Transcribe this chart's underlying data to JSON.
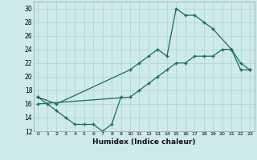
{
  "xlabel": "Humidex (Indice chaleur)",
  "background_color": "#ceeaea",
  "grid_color": "#b8d8d8",
  "line_color": "#1a6b5a",
  "ylim": [
    12,
    31
  ],
  "xlim": [
    -0.5,
    23.5
  ],
  "line1_x": [
    0,
    1,
    2,
    3,
    4,
    5,
    6,
    7,
    8,
    9
  ],
  "line1_y": [
    17,
    16,
    15,
    14,
    13,
    13,
    13,
    12,
    13,
    17
  ],
  "line2_x": [
    0,
    2,
    10,
    11,
    12,
    13,
    14,
    15,
    16,
    17,
    18,
    19,
    21,
    22,
    23
  ],
  "line2_y": [
    17,
    16,
    21,
    22,
    23,
    24,
    23,
    30,
    29,
    29,
    28,
    27,
    24,
    22,
    21
  ],
  "line3_x": [
    0,
    10,
    11,
    12,
    13,
    14,
    15,
    16,
    17,
    18,
    19,
    20,
    21,
    22,
    23
  ],
  "line3_y": [
    16,
    17,
    18,
    19,
    20,
    21,
    22,
    22,
    23,
    23,
    23,
    24,
    24,
    21,
    21
  ]
}
